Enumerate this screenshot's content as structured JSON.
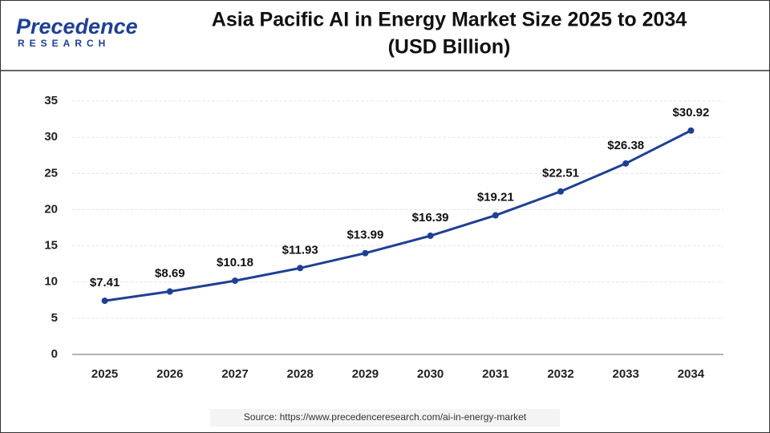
{
  "logo": {
    "name": "Precedence",
    "tagline": "RESEARCH"
  },
  "chart_data": {
    "type": "line",
    "title": "Asia Pacific AI in Energy Market Size 2025 to 2034",
    "subtitle": "(USD Billion)",
    "categories": [
      "2025",
      "2026",
      "2027",
      "2028",
      "2029",
      "2030",
      "2031",
      "2032",
      "2033",
      "2034"
    ],
    "values": [
      7.41,
      8.69,
      10.18,
      11.93,
      13.99,
      16.39,
      19.21,
      22.51,
      26.38,
      30.92
    ],
    "value_labels": [
      "$7.41",
      "$8.69",
      "$10.18",
      "$11.93",
      "$13.99",
      "$16.39",
      "$19.21",
      "$22.51",
      "$26.38",
      "$30.92"
    ],
    "color": "#1f3f94",
    "ylim": [
      0,
      35
    ],
    "yticks": [
      0,
      5,
      10,
      15,
      20,
      25,
      30,
      35
    ],
    "grid": true,
    "source": "Source: https://www.precedenceresearch.com/ai-in-energy-market"
  }
}
